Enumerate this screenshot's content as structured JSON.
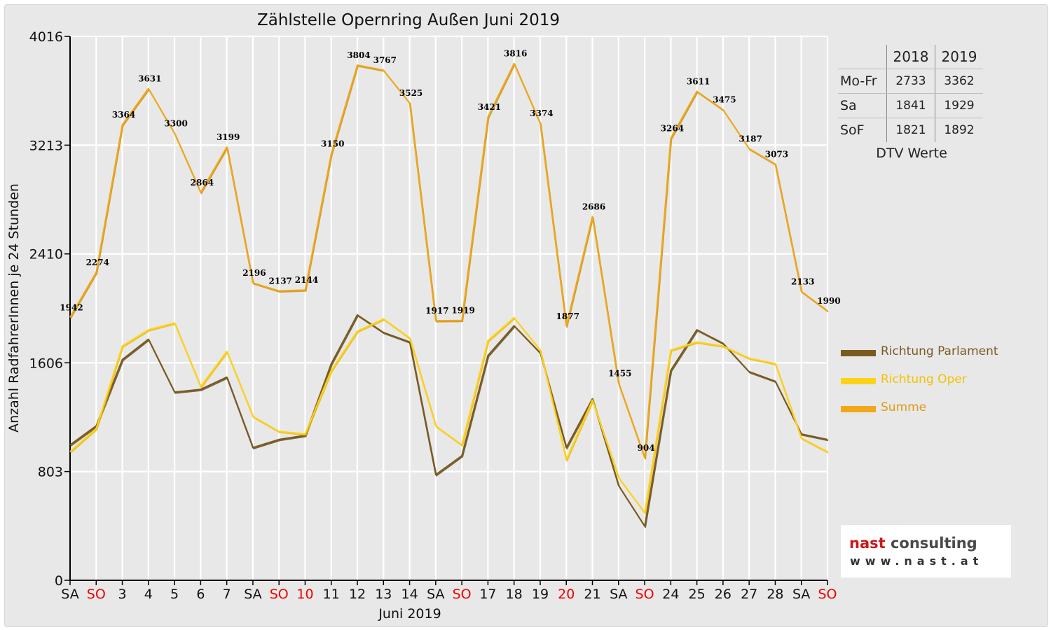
{
  "chart_data": {
    "type": "line",
    "title": "Zählstelle Opernring Außen Juni 2019",
    "xlabel": "Juni 2019",
    "ylabel": "Anzahl RadfahrerInnen je 24 Stunden",
    "ylim": [
      0,
      4016
    ],
    "yticks": [
      "0",
      "803",
      "1606",
      "2410",
      "3213",
      "4016"
    ],
    "grid": true,
    "legend_position": "right",
    "categories": [
      "SA",
      "SO",
      "3",
      "4",
      "5",
      "6",
      "7",
      "SA",
      "SO",
      "10",
      "11",
      "12",
      "13",
      "14",
      "SA",
      "SO",
      "17",
      "18",
      "19",
      "20",
      "21",
      "SA",
      "SO",
      "24",
      "25",
      "26",
      "27",
      "28",
      "SA",
      "SO"
    ],
    "red_categories": [
      1,
      8,
      9,
      15,
      19,
      22,
      29
    ],
    "series": [
      {
        "name": "Richtung Parlament",
        "color": "#7a5a1e",
        "values": [
          1000,
          1140,
          1630,
          1780,
          1390,
          1410,
          1500,
          980,
          1040,
          1070,
          1600,
          1960,
          1830,
          1760,
          780,
          920,
          1660,
          1880,
          1680,
          980,
          1340,
          700,
          400,
          1550,
          1850,
          1750,
          1540,
          1470,
          1080,
          1040
        ]
      },
      {
        "name": "Richtung Oper",
        "color": "#ffd21a",
        "values": [
          950,
          1120,
          1730,
          1850,
          1900,
          1430,
          1690,
          1210,
          1100,
          1080,
          1550,
          1840,
          1930,
          1790,
          1140,
          1000,
          1770,
          1940,
          1700,
          890,
          1330,
          760,
          500,
          1700,
          1760,
          1730,
          1640,
          1600,
          1050,
          950
        ]
      },
      {
        "name": "Summe",
        "color": "#f0a818",
        "values": [
          1942,
          2274,
          3364,
          3631,
          3300,
          2864,
          3199,
          2196,
          2137,
          2144,
          3150,
          3804,
          3767,
          3525,
          1917,
          1919,
          3421,
          3816,
          3374,
          1877,
          2686,
          1455,
          904,
          3264,
          3611,
          3475,
          3187,
          3073,
          2133,
          1990
        ]
      }
    ],
    "data_labels": [
      "1942",
      "2274",
      "3364",
      "3631",
      "3300",
      "2864",
      "3199",
      "2196",
      "2137",
      "2144",
      "3150",
      "3804",
      "3767",
      "3525",
      "1917",
      "1919",
      "3421",
      "3816",
      "3374",
      "1877",
      "2686",
      "1455",
      "904",
      "3264",
      "3611",
      "3475",
      "3187",
      "3073",
      "2133",
      "1990"
    ]
  },
  "dtv_table": {
    "headers": [
      "2018",
      "2019"
    ],
    "rows": [
      {
        "label": "Mo-Fr",
        "v2018": "2733",
        "v2019": "3362"
      },
      {
        "label": "Sa",
        "v2018": "1841",
        "v2019": "1929"
      },
      {
        "label": "SoF",
        "v2018": "1821",
        "v2019": "1892"
      }
    ],
    "caption": "DTV Werte"
  },
  "logo": {
    "name_first": "nast",
    "name_rest": " consulting",
    "url": "www.nast.at"
  },
  "colors": {
    "holiday_red": "#ee0000",
    "grid": "#ffffff",
    "frame": "#e8e8e8"
  }
}
